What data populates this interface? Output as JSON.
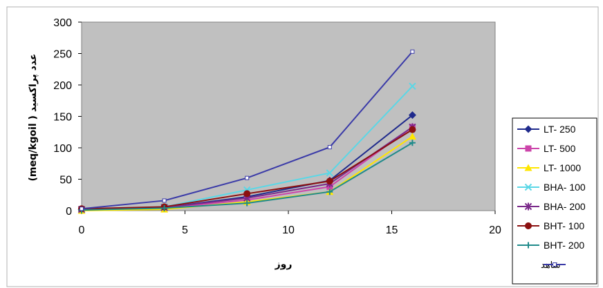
{
  "chart_data": {
    "type": "line",
    "xlabel": "روز",
    "ylabel": "عدد پراکسید ( meq/kgoil)",
    "xlim": [
      0,
      20
    ],
    "ylim": [
      0,
      300
    ],
    "x_ticks": [
      0,
      5,
      10,
      15,
      20
    ],
    "y_ticks": [
      0,
      50,
      100,
      150,
      200,
      250,
      300
    ],
    "grid": false,
    "plot_background": "#c0c0c0",
    "legend_position": "right",
    "x": [
      0,
      4,
      8,
      12,
      16
    ],
    "series": [
      {
        "name": "LT- 250",
        "color": "#1f2a8c",
        "marker": "diamond",
        "values": [
          2,
          5,
          22,
          48,
          152
        ]
      },
      {
        "name": "LT- 500",
        "color": "#cc44aa",
        "marker": "square",
        "values": [
          1,
          4,
          17,
          38,
          133
        ]
      },
      {
        "name": "LT- 1000",
        "color": "#ffe600",
        "marker": "triangle",
        "values": [
          0,
          2,
          14,
          30,
          118
        ]
      },
      {
        "name": "BHA- 100",
        "color": "#5ad7e6",
        "marker": "x",
        "values": [
          2,
          6,
          33,
          60,
          198
        ]
      },
      {
        "name": "BHA- 200",
        "color": "#7a2a8a",
        "marker": "star",
        "values": [
          2,
          5,
          20,
          43,
          133
        ]
      },
      {
        "name": "BHT- 100",
        "color": "#8b1010",
        "marker": "circle",
        "values": [
          3,
          6,
          27,
          47,
          129
        ]
      },
      {
        "name": "BHT- 200",
        "color": "#1f8a8a",
        "marker": "plus",
        "values": [
          1,
          4,
          12,
          30,
          108
        ]
      },
      {
        "name": "شاهد",
        "color": "#3a3aa8",
        "marker": "open-square",
        "values": [
          3,
          16,
          52,
          101,
          253
        ]
      }
    ]
  }
}
